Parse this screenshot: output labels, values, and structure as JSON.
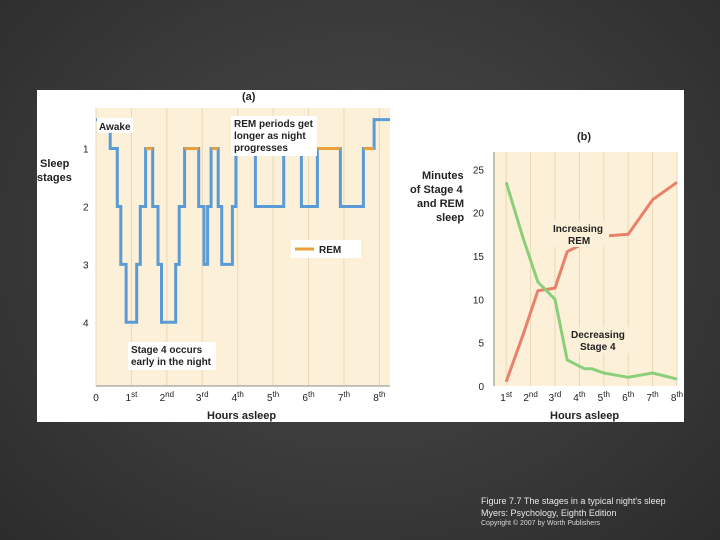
{
  "caption": {
    "line1": "Figure 7.7 The stages in a typical night's sleep",
    "line2": "Myers: Psychology, Eighth Edition",
    "line3": "Copyright © 2007 by Worth Publishers"
  },
  "colors": {
    "slide_background": "#3a3a3a",
    "plot_background": "#fcf0d8",
    "grid": "#e8d9b8",
    "stage_line": "#5b9bd5",
    "rem": "#e8a13a",
    "stage4_line": "#8ccf7a",
    "rem_minutes_line": "#e8806a"
  },
  "chart_data": [
    {
      "type": "line",
      "panel_label": "(a)",
      "ylabel": "Sleep stages",
      "xlabel": "Hours asleep",
      "y_ticks": [
        "1",
        "2",
        "3",
        "4"
      ],
      "x_ticks": [
        {
          "num": "0",
          "sup": ""
        },
        {
          "num": "1",
          "sup": "st"
        },
        {
          "num": "2",
          "sup": "nd"
        },
        {
          "num": "3",
          "sup": "rd"
        },
        {
          "num": "4",
          "sup": "th"
        },
        {
          "num": "5",
          "sup": "th"
        },
        {
          "num": "6",
          "sup": "th"
        },
        {
          "num": "7",
          "sup": "th"
        },
        {
          "num": "8",
          "sup": "th"
        }
      ],
      "xlim": [
        0,
        8.3
      ],
      "ylim": [
        0.3,
        5.1
      ],
      "grid": true,
      "legend": [
        {
          "name": "REM",
          "placement": "right-middle"
        }
      ],
      "annotations": {
        "awake": "Awake",
        "rem_longer": [
          "REM periods get",
          "longer as night",
          "progresses"
        ],
        "stage4_early": [
          "Stage 4 occurs",
          "early in the night"
        ]
      },
      "series": [
        {
          "name": "Sleep stage",
          "points": [
            [
              0,
              0.5
            ],
            [
              0.4,
              0.5
            ],
            [
              0.4,
              1
            ],
            [
              0.6,
              1
            ],
            [
              0.6,
              2
            ],
            [
              0.7,
              2
            ],
            [
              0.7,
              3
            ],
            [
              0.85,
              3
            ],
            [
              0.85,
              4
            ],
            [
              1.15,
              4
            ],
            [
              1.15,
              3
            ],
            [
              1.25,
              3
            ],
            [
              1.25,
              2
            ],
            [
              1.4,
              2
            ],
            [
              1.4,
              1
            ],
            [
              1.6,
              1
            ],
            [
              1.6,
              2
            ],
            [
              1.75,
              2
            ],
            [
              1.75,
              3
            ],
            [
              1.85,
              3
            ],
            [
              1.85,
              4
            ],
            [
              2.25,
              4
            ],
            [
              2.25,
              3
            ],
            [
              2.35,
              3
            ],
            [
              2.35,
              2
            ],
            [
              2.5,
              2
            ],
            [
              2.5,
              1
            ],
            [
              2.9,
              1
            ],
            [
              2.9,
              2
            ],
            [
              3.05,
              2
            ],
            [
              3.05,
              3
            ],
            [
              3.15,
              3
            ],
            [
              3.15,
              2
            ],
            [
              3.25,
              2
            ],
            [
              3.25,
              1
            ],
            [
              3.45,
              1
            ],
            [
              3.45,
              2
            ],
            [
              3.55,
              2
            ],
            [
              3.55,
              3
            ],
            [
              3.85,
              3
            ],
            [
              3.85,
              2
            ],
            [
              3.95,
              2
            ],
            [
              3.95,
              1
            ],
            [
              4.5,
              1
            ],
            [
              4.5,
              2
            ],
            [
              5.3,
              2
            ],
            [
              5.3,
              1
            ],
            [
              5.8,
              1
            ],
            [
              5.8,
              2
            ],
            [
              6.25,
              2
            ],
            [
              6.25,
              1
            ],
            [
              6.9,
              1
            ],
            [
              6.9,
              2
            ],
            [
              7.55,
              2
            ],
            [
              7.55,
              1
            ],
            [
              7.85,
              1
            ],
            [
              7.85,
              0.5
            ],
            [
              8.3,
              0.5
            ]
          ]
        },
        {
          "name": "REM",
          "segments": [
            [
              1.4,
              1.6
            ],
            [
              2.5,
              2.9
            ],
            [
              3.25,
              3.45
            ],
            [
              3.95,
              4.5
            ],
            [
              5.3,
              5.8
            ],
            [
              6.25,
              6.9
            ],
            [
              7.55,
              7.85
            ]
          ]
        }
      ]
    },
    {
      "type": "line",
      "panel_label": "(b)",
      "ylabel": "Minutes of Stage 4 and REM sleep",
      "xlabel": "Hours asleep",
      "y_ticks": [
        0,
        5,
        10,
        15,
        20,
        25
      ],
      "ylim": [
        0,
        27
      ],
      "x_ticks": [
        {
          "num": "1",
          "sup": "st"
        },
        {
          "num": "2",
          "sup": "nd"
        },
        {
          "num": "3",
          "sup": "rd"
        },
        {
          "num": "4",
          "sup": "th"
        },
        {
          "num": "5",
          "sup": "th"
        },
        {
          "num": "6",
          "sup": "th"
        },
        {
          "num": "7",
          "sup": "th"
        },
        {
          "num": "8",
          "sup": "th"
        }
      ],
      "xlim": [
        0.5,
        8
      ],
      "grid": true,
      "annotations": {
        "increasing_rem": [
          "Increasing",
          "REM"
        ],
        "decreasing_stage4": [
          "Decreasing",
          "Stage 4"
        ]
      },
      "series": [
        {
          "name": "REM",
          "x": [
            1,
            1.7,
            2.3,
            3,
            3.5,
            4.2,
            4.5,
            5,
            6,
            7,
            8
          ],
          "y": [
            0.5,
            6,
            11,
            11.3,
            15.5,
            16.5,
            17,
            17.3,
            17.5,
            21.5,
            23.5
          ]
        },
        {
          "name": "Stage 4",
          "x": [
            1,
            1.7,
            2.3,
            3,
            3.5,
            4.2,
            4.5,
            5,
            6,
            7,
            8
          ],
          "y": [
            23.5,
            17,
            12,
            10,
            3,
            2,
            2,
            1.5,
            1,
            1.5,
            0.8
          ]
        }
      ]
    }
  ]
}
